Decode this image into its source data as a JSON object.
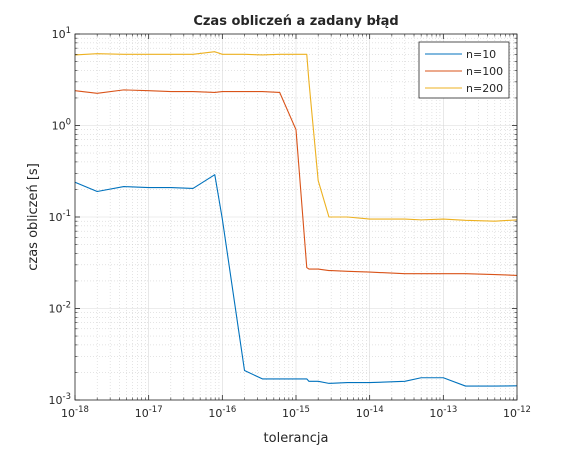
{
  "chart_data": {
    "type": "line",
    "title": "Czas obliczeń a zadany błąd",
    "xlabel": "tolerancja",
    "ylabel": "czas obliczeń [s]",
    "xscale": "log",
    "yscale": "log",
    "xlim": [
      1e-18,
      1e-12
    ],
    "ylim": [
      0.001,
      10
    ],
    "grid": "on (major and minor)",
    "legend_location": "top-right",
    "x_ticks": [
      {
        "base": "10",
        "exp": "-18"
      },
      {
        "base": "10",
        "exp": "-17"
      },
      {
        "base": "10",
        "exp": "-16"
      },
      {
        "base": "10",
        "exp": "-15"
      },
      {
        "base": "10",
        "exp": "-14"
      },
      {
        "base": "10",
        "exp": "-13"
      },
      {
        "base": "10",
        "exp": "-12"
      }
    ],
    "y_ticks": [
      {
        "base": "10",
        "exp": "-3"
      },
      {
        "base": "10",
        "exp": "-2"
      },
      {
        "base": "10",
        "exp": "-1"
      },
      {
        "base": "10",
        "exp": "0"
      },
      {
        "base": "10",
        "exp": "1"
      }
    ],
    "x": [
      1e-18,
      2e-18,
      4.6e-18,
      1e-17,
      2e-17,
      4e-17,
      7.9e-17,
      1e-16,
      2e-16,
      3.5e-16,
      6e-16,
      1e-15,
      1.4e-15,
      1.5e-15,
      2e-15,
      2.8e-15,
      3e-15,
      5e-15,
      1e-14,
      3e-14,
      5e-14,
      1e-13,
      2e-13,
      5e-13,
      1e-12
    ],
    "series": [
      {
        "name": "n=10",
        "color": "#0072BD",
        "values": [
          0.24,
          0.19,
          0.215,
          0.21,
          0.21,
          0.205,
          0.29,
          0.095,
          0.0021,
          0.0017,
          0.0017,
          0.0017,
          0.0017,
          0.0016,
          0.0016,
          0.00152,
          0.00152,
          0.00155,
          0.00155,
          0.0016,
          0.00175,
          0.00175,
          0.00142,
          0.00142,
          0.00143
        ]
      },
      {
        "name": "n=100",
        "color": "#D95319",
        "values": [
          2.4,
          2.25,
          2.45,
          2.4,
          2.35,
          2.35,
          2.3,
          2.35,
          2.35,
          2.35,
          2.3,
          0.9,
          0.028,
          0.027,
          0.027,
          0.026,
          0.026,
          0.0255,
          0.025,
          0.024,
          0.024,
          0.024,
          0.024,
          0.0235,
          0.023
        ]
      },
      {
        "name": "n=200",
        "color": "#EDB120",
        "values": [
          5.9,
          6.1,
          6.0,
          6.0,
          6.0,
          6.0,
          6.4,
          6.0,
          6.0,
          5.9,
          6.0,
          6.0,
          6.0,
          3.0,
          0.25,
          0.1,
          0.1,
          0.1,
          0.095,
          0.095,
          0.093,
          0.095,
          0.092,
          0.09,
          0.093
        ]
      }
    ]
  }
}
